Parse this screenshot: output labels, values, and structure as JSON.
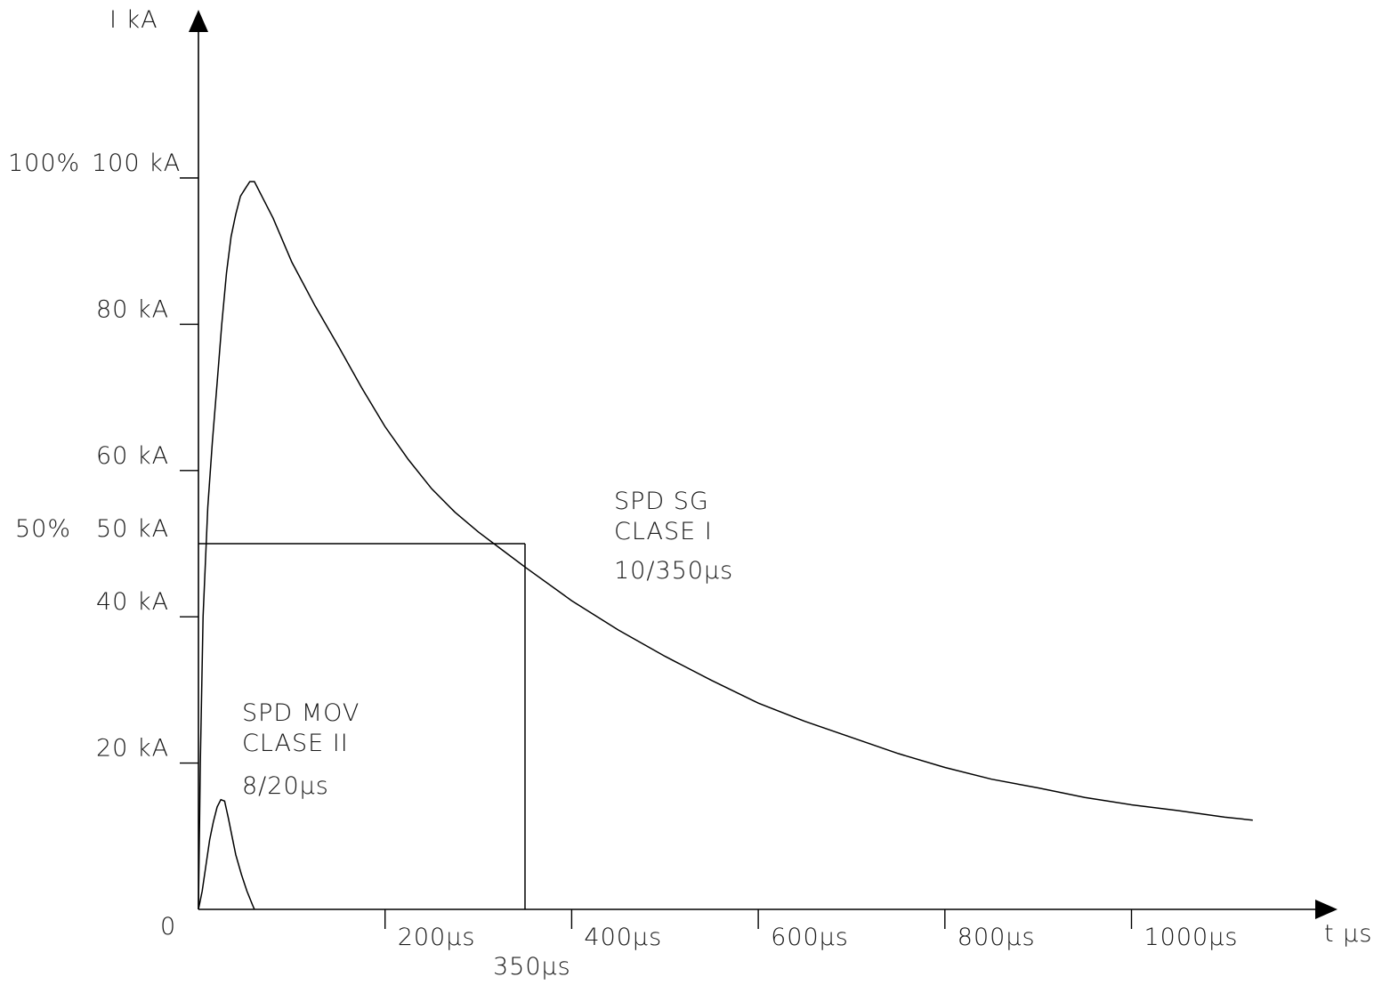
{
  "chart_data": {
    "type": "line",
    "ylabel": "I  kA",
    "xlabel": "t  µs",
    "origin_label": "0",
    "xlim": [
      0,
      1200
    ],
    "ylim": [
      0,
      120
    ],
    "grid": false,
    "x_ticks": [
      {
        "value": 200,
        "label": "200µs"
      },
      {
        "value": 400,
        "label": "400µs"
      },
      {
        "value": 600,
        "label": "600µs"
      },
      {
        "value": 800,
        "label": "800µs"
      },
      {
        "value": 1000,
        "label": "1000µs"
      }
    ],
    "y_ticks": [
      {
        "value": 20,
        "label": "20  kA"
      },
      {
        "value": 40,
        "label": "40  kA"
      },
      {
        "value": 50,
        "label": "50  kA"
      },
      {
        "value": 60,
        "label": "60  kA"
      },
      {
        "value": 80,
        "label": "80  kA"
      },
      {
        "value": 100,
        "label": "100  kA"
      }
    ],
    "percent_labels": [
      {
        "value": 100,
        "label": "100%"
      },
      {
        "value": 50,
        "label": "50%"
      }
    ],
    "reference": {
      "x": 350,
      "y": 50,
      "x_label": "350µs"
    },
    "series": [
      {
        "name": "SPD SG CLASE I 10/350µs",
        "x": [
          0,
          2,
          5,
          10,
          15,
          20,
          25,
          30,
          35,
          40,
          45,
          50,
          55,
          60,
          70,
          80,
          100,
          125,
          150,
          175,
          200,
          225,
          250,
          275,
          300,
          325,
          350,
          400,
          450,
          500,
          550,
          600,
          650,
          700,
          750,
          800,
          850,
          900,
          950,
          1000,
          1050,
          1100,
          1130
        ],
        "y": [
          0,
          20,
          40,
          55,
          64,
          72,
          80,
          87,
          92,
          95,
          97.5,
          98.5,
          99.5,
          99.5,
          97,
          94.5,
          88.5,
          82.5,
          77,
          71.3,
          66,
          61.5,
          57.5,
          54.3,
          51.6,
          49.2,
          46.8,
          42.2,
          38.2,
          34.6,
          31.3,
          28.2,
          25.7,
          23.5,
          21.3,
          19.4,
          17.8,
          16.6,
          15.3,
          14.3,
          13.5,
          12.6,
          12.2
        ]
      },
      {
        "name": "SPD MOV CLASE II 8/20µs",
        "x": [
          0,
          4,
          8,
          12,
          16,
          20,
          24,
          28,
          32,
          36,
          40,
          46,
          52,
          58,
          60
        ],
        "y": [
          0,
          2.5,
          6,
          9.5,
          12,
          14,
          15,
          14.8,
          12.5,
          10,
          7.5,
          4.8,
          2.5,
          0.6,
          0
        ]
      }
    ],
    "annotations": [
      {
        "series": 0,
        "lines": [
          "SPD SG",
          "CLASE I",
          "10/350µs"
        ]
      },
      {
        "series": 1,
        "lines": [
          "SPD MOV",
          "CLASE II",
          "8/20µs"
        ]
      }
    ]
  }
}
